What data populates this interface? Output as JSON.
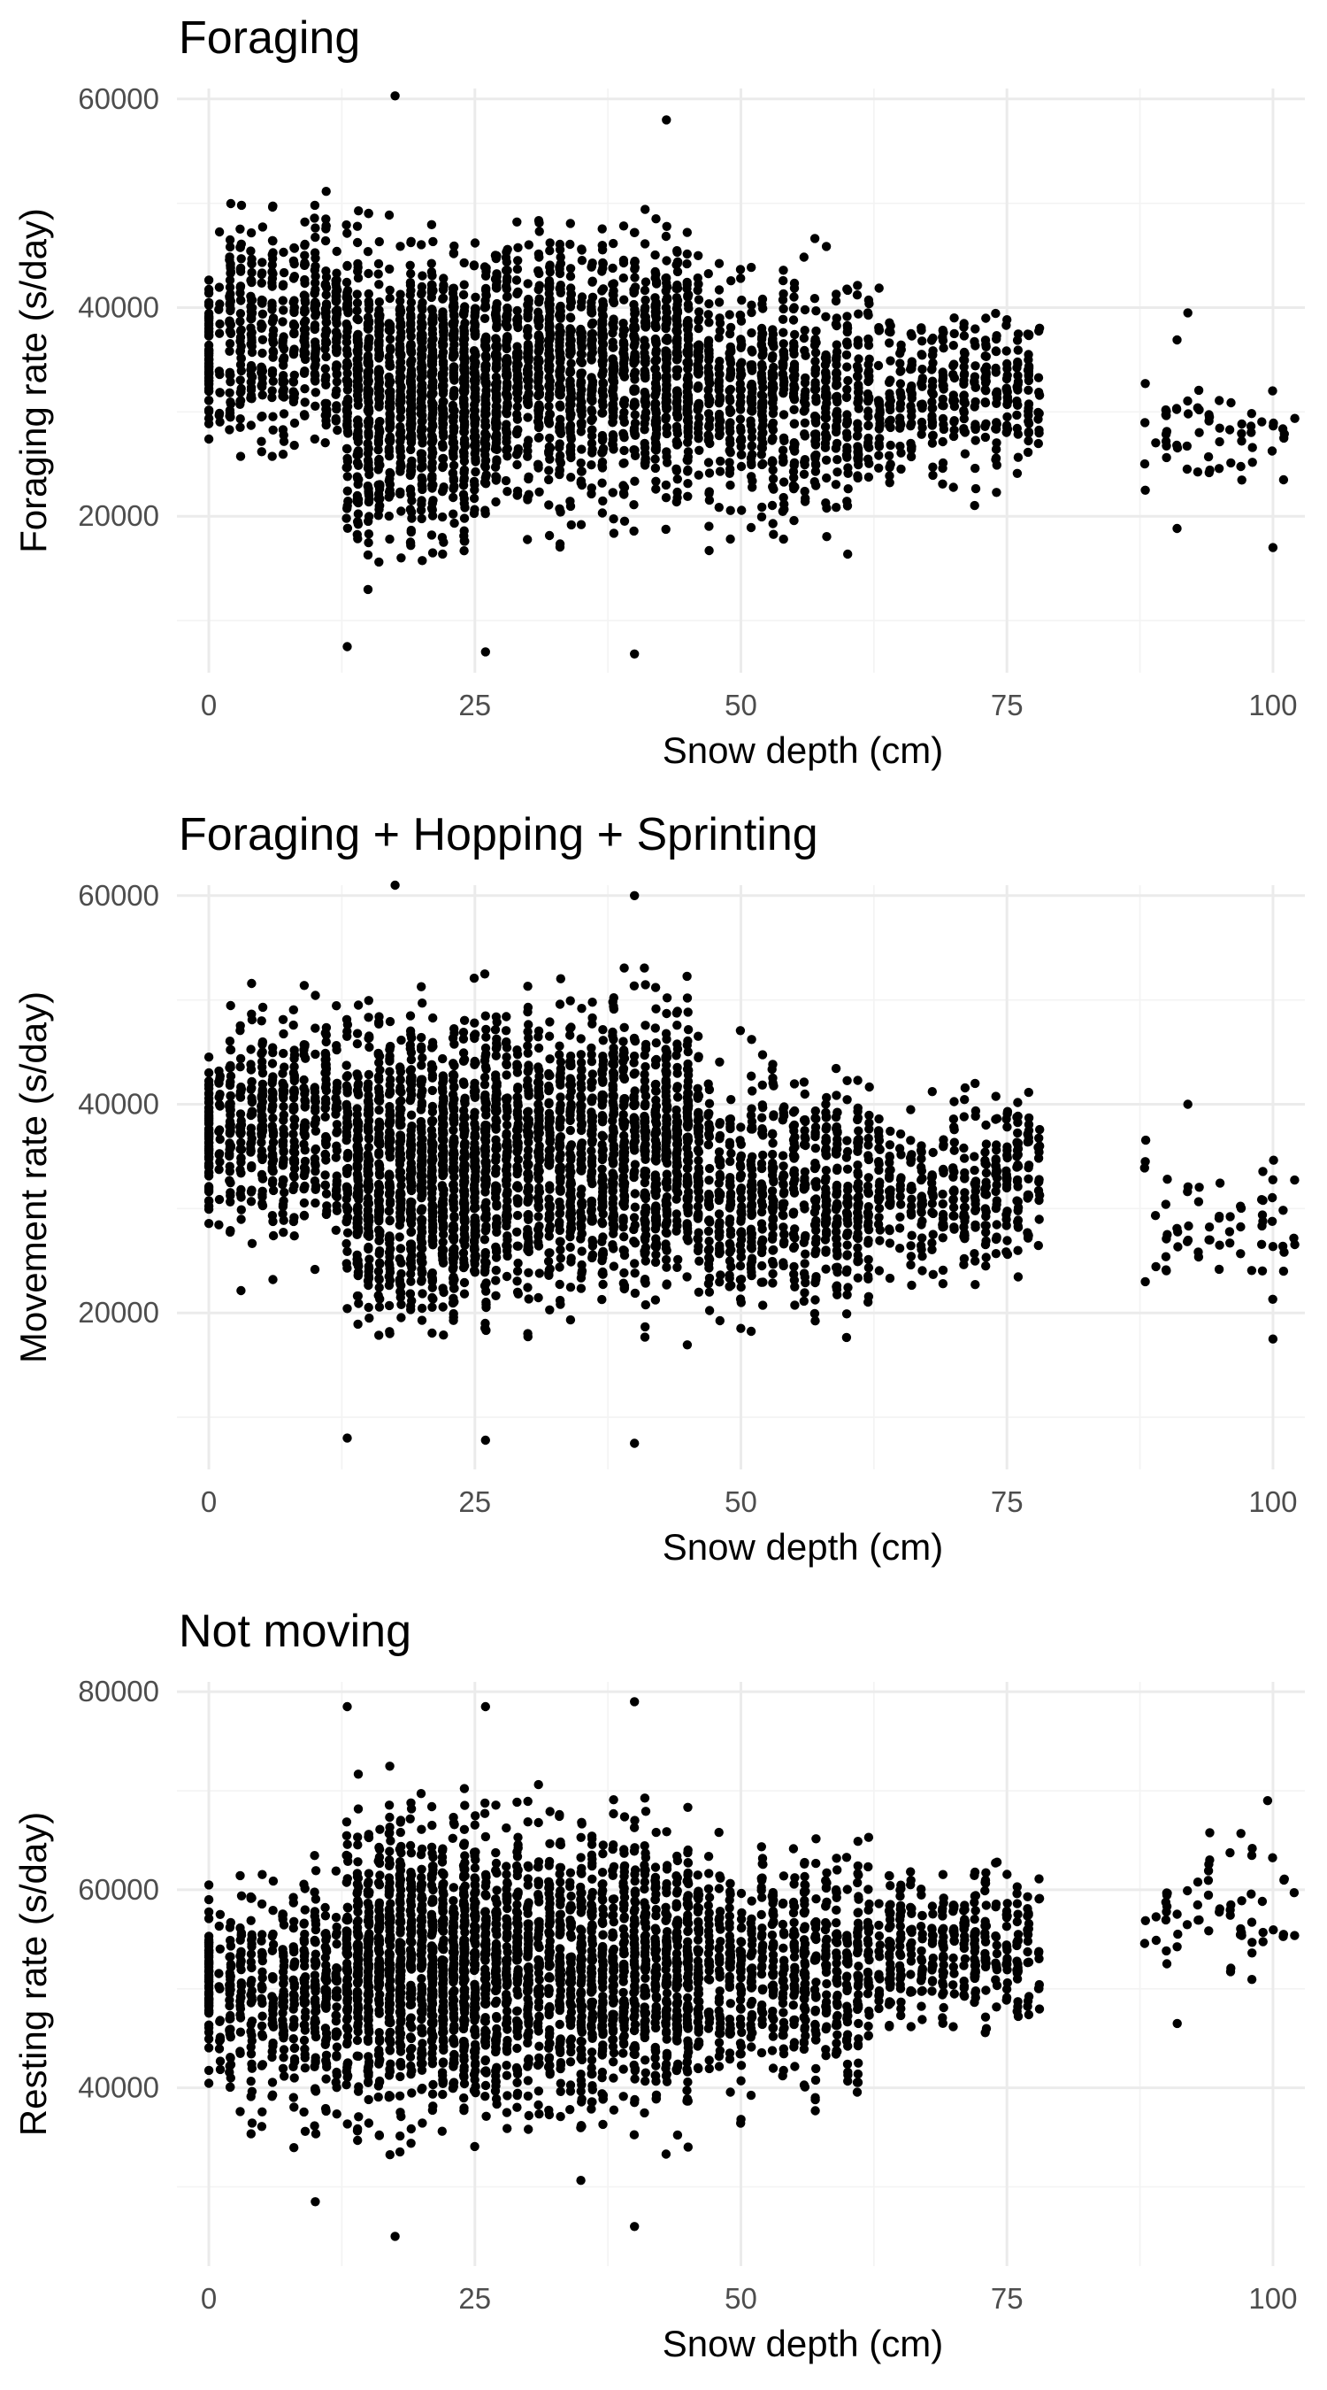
{
  "chart_data": [
    {
      "type": "scatter",
      "title": "Foraging",
      "xlabel": "Snow depth (cm)",
      "ylabel": "Foraging rate (s/day)",
      "xlim": [
        -3,
        103
      ],
      "ylim": [
        5000,
        61000
      ],
      "xticks": [
        0,
        25,
        50,
        75,
        100
      ],
      "yticks": [
        20000,
        40000,
        60000
      ],
      "grid": true,
      "point_color": "#000000",
      "clusters": [
        {
          "x_range": [
            0,
            0.3
          ],
          "y_range": [
            21500,
            48500
          ],
          "count": 60
        },
        {
          "x_range": [
            1,
            13
          ],
          "y_range": [
            19000,
            56000
          ],
          "count": 450
        },
        {
          "x_range": [
            13,
            26
          ],
          "y_range": [
            9000,
            55000
          ],
          "count": 1100
        },
        {
          "x_range": [
            26,
            46
          ],
          "y_range": [
            12000,
            56000
          ],
          "count": 1300
        },
        {
          "x_range": [
            46,
            62
          ],
          "y_range": [
            12000,
            50000
          ],
          "count": 600
        },
        {
          "x_range": [
            62,
            78
          ],
          "y_range": [
            18000,
            45000
          ],
          "count": 350
        },
        {
          "x_range": [
            88,
            102
          ],
          "y_range": [
            17000,
            39000
          ],
          "count": 60
        }
      ],
      "outliers": [
        {
          "x": 17.5,
          "y": 60300
        },
        {
          "x": 13,
          "y": 7500
        },
        {
          "x": 26,
          "y": 7000
        },
        {
          "x": 40,
          "y": 6800
        },
        {
          "x": 100,
          "y": 17000
        },
        {
          "x": 101,
          "y": 23500
        },
        {
          "x": 88,
          "y": 22500
        },
        {
          "x": 92,
          "y": 39500
        },
        {
          "x": 43,
          "y": 58000
        }
      ]
    },
    {
      "type": "scatter",
      "title": "Foraging + Hopping + Sprinting",
      "xlabel": "Snow depth (cm)",
      "ylabel": "Movement rate (s/day)",
      "xlim": [
        -3,
        103
      ],
      "ylim": [
        5000,
        61000
      ],
      "xticks": [
        0,
        25,
        50,
        75,
        100
      ],
      "yticks": [
        20000,
        40000,
        60000
      ],
      "grid": true,
      "point_color": "#000000",
      "clusters": [
        {
          "x_range": [
            0,
            0.3
          ],
          "y_range": [
            22000,
            49000
          ],
          "count": 60
        },
        {
          "x_range": [
            1,
            13
          ],
          "y_range": [
            19000,
            57000
          ],
          "count": 450
        },
        {
          "x_range": [
            13,
            26
          ],
          "y_range": [
            9500,
            57000
          ],
          "count": 1100
        },
        {
          "x_range": [
            26,
            46
          ],
          "y_range": [
            12000,
            59000
          ],
          "count": 1300
        },
        {
          "x_range": [
            46,
            62
          ],
          "y_range": [
            12000,
            51000
          ],
          "count": 600
        },
        {
          "x_range": [
            62,
            78
          ],
          "y_range": [
            18000,
            46000
          ],
          "count": 350
        },
        {
          "x_range": [
            88,
            102
          ],
          "y_range": [
            17500,
            40000
          ],
          "count": 60
        }
      ],
      "outliers": [
        {
          "x": 17.5,
          "y": 61000
        },
        {
          "x": 13,
          "y": 8000
        },
        {
          "x": 26,
          "y": 7800
        },
        {
          "x": 40,
          "y": 7500
        },
        {
          "x": 100,
          "y": 17500
        },
        {
          "x": 101,
          "y": 24000
        },
        {
          "x": 88,
          "y": 23000
        },
        {
          "x": 92,
          "y": 40000
        },
        {
          "x": 40,
          "y": 60000
        }
      ]
    },
    {
      "type": "scatter",
      "title": "Not moving",
      "xlabel": "Snow depth (cm)",
      "ylabel": "Resting rate (s/day)",
      "xlim": [
        -3,
        103
      ],
      "ylim": [
        22000,
        81000
      ],
      "xticks": [
        0,
        25,
        50,
        75,
        100
      ],
      "yticks": [
        40000,
        60000,
        80000
      ],
      "grid": true,
      "point_color": "#000000",
      "clusters": [
        {
          "x_range": [
            0,
            0.3
          ],
          "y_range": [
            37500,
            65000
          ],
          "count": 60
        },
        {
          "x_range": [
            1,
            13
          ],
          "y_range": [
            30000,
            68000
          ],
          "count": 450
        },
        {
          "x_range": [
            13,
            26
          ],
          "y_range": [
            28000,
            77000
          ],
          "count": 1100
        },
        {
          "x_range": [
            26,
            46
          ],
          "y_range": [
            27000,
            76000
          ],
          "count": 1300
        },
        {
          "x_range": [
            46,
            62
          ],
          "y_range": [
            32000,
            72000
          ],
          "count": 600
        },
        {
          "x_range": [
            62,
            78
          ],
          "y_range": [
            40000,
            68000
          ],
          "count": 350
        },
        {
          "x_range": [
            88,
            102
          ],
          "y_range": [
            46000,
            69000
          ],
          "count": 60
        }
      ],
      "outliers": [
        {
          "x": 17.5,
          "y": 25000
        },
        {
          "x": 13,
          "y": 78500
        },
        {
          "x": 26,
          "y": 78500
        },
        {
          "x": 40,
          "y": 79000
        },
        {
          "x": 10,
          "y": 28500
        },
        {
          "x": 40,
          "y": 26000
        },
        {
          "x": 99.5,
          "y": 69000
        },
        {
          "x": 101,
          "y": 55500
        },
        {
          "x": 91,
          "y": 46500
        }
      ]
    }
  ]
}
